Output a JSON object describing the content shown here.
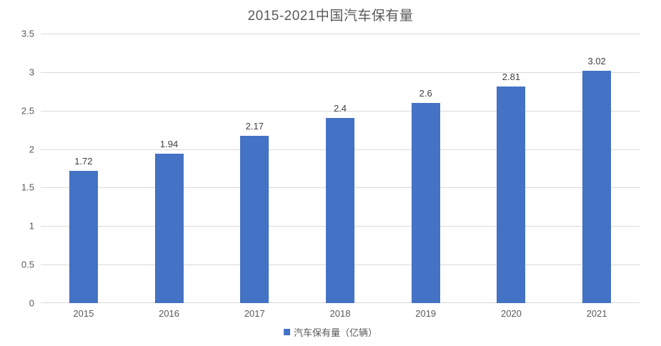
{
  "chart_data": {
    "type": "bar",
    "title": "2015-2021中国汽车保有量",
    "categories": [
      "2015",
      "2016",
      "2017",
      "2018",
      "2019",
      "2020",
      "2021"
    ],
    "values": [
      1.72,
      1.94,
      2.17,
      2.4,
      2.6,
      2.81,
      3.02
    ],
    "value_labels": [
      "1.72",
      "1.94",
      "2.17",
      "2.4",
      "2.6",
      "2.81",
      "3.02"
    ],
    "legend_label": "汽车保有量（亿辆）",
    "legend_position": "bottom",
    "ylim": [
      0,
      3.5
    ],
    "ytick_labels": [
      "0",
      "0.5",
      "1",
      "1.5",
      "2",
      "2.5",
      "3",
      "3.5"
    ],
    "grid": "horizontal",
    "xlabel": "",
    "ylabel": ""
  },
  "colors": {
    "bar": "#4472c4",
    "gridline": "#d9d9d9",
    "title_text": "#595959",
    "axis_text": "#595959",
    "data_label_text": "#404040",
    "background": "#ffffff"
  }
}
